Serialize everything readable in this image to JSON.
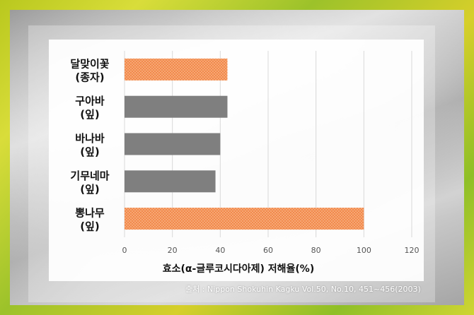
{
  "chart_data": {
    "type": "bar",
    "orientation": "horizontal",
    "categories": [
      [
        "달맞이꽃",
        "(종자)"
      ],
      [
        "구아바",
        "(잎)"
      ],
      [
        "바나바",
        "(잎)"
      ],
      [
        "기무네마",
        "(잎)"
      ],
      [
        "뽕나무",
        "(잎)"
      ]
    ],
    "values": [
      43,
      43,
      40,
      38,
      100
    ],
    "bar_colors": [
      "#f28a4b",
      "#7f7f7f",
      "#7f7f7f",
      "#7f7f7f",
      "#f28a4b"
    ],
    "xlabel": "효소(α-글루코시다아제) 저해율(%)",
    "xlim": [
      0,
      120
    ],
    "xticks": [
      0,
      20,
      40,
      60,
      80,
      100,
      120
    ],
    "grid": true
  },
  "source": "출처 : Nippon Shokuhin Kagku Vol.50, No.10, 451~456(2003)"
}
